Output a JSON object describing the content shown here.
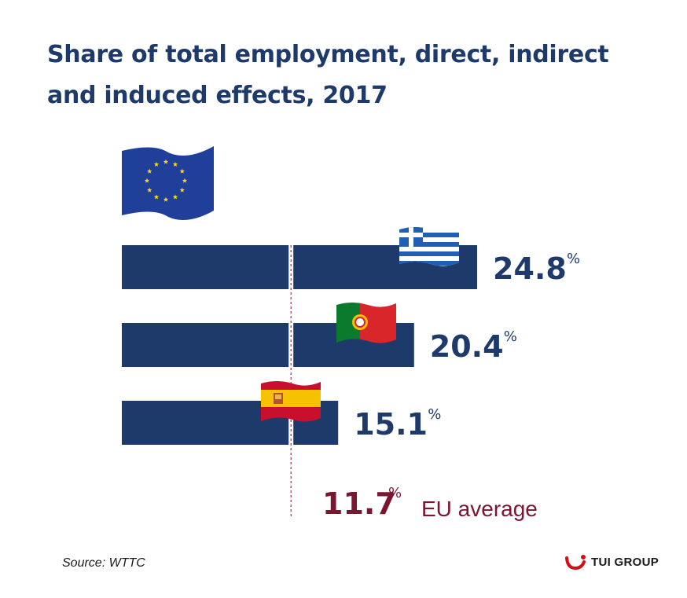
{
  "title": "Share of total employment, direct, indirect and induced effects, 2017",
  "colors": {
    "title": "#1d3a6b",
    "bar": "#1d3a6b",
    "eu_average": "#7b1530",
    "background": "#ffffff",
    "logo_red": "#d40e14"
  },
  "chart_data": {
    "type": "bar",
    "orientation": "horizontal",
    "categories": [
      "Greece",
      "Portugal",
      "Spain"
    ],
    "values": [
      24.8,
      20.4,
      15.1
    ],
    "value_labels": [
      "24.8",
      "20.4",
      "15.1"
    ],
    "unit": "%",
    "reference_line": {
      "value": 11.7,
      "label": "11.7",
      "unit": "%",
      "text": "EU average"
    },
    "xlim": [
      0,
      24.8
    ],
    "grid": false,
    "legend": "none"
  },
  "icons": [
    "eu-flag-icon",
    "greece-flag-icon",
    "portugal-flag-icon",
    "spain-flag-icon",
    "tui-smile-logo-icon"
  ],
  "source": "Source: WTTC",
  "logo": "TUI GROUP"
}
